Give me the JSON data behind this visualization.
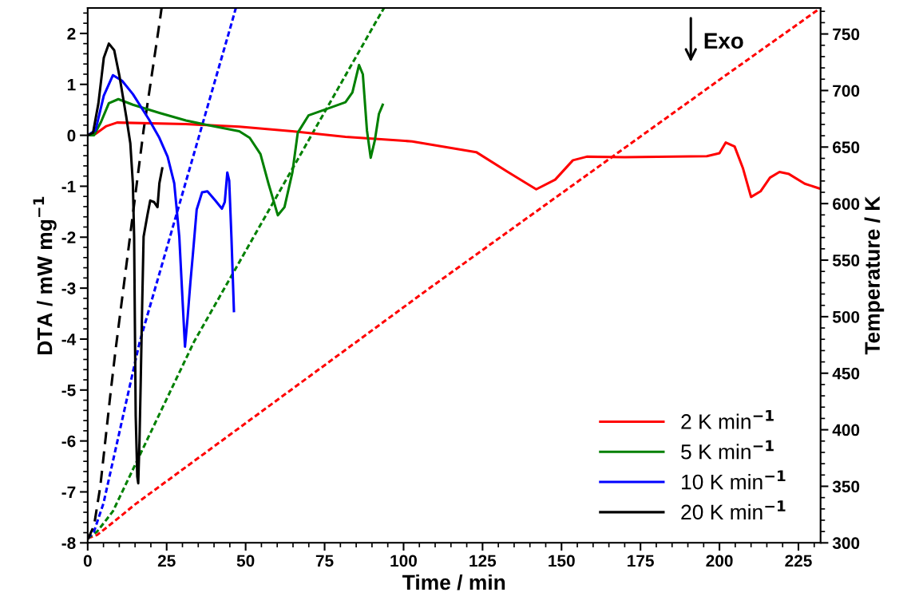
{
  "chart_data": {
    "type": "line",
    "xlabel": "Time / min",
    "ylabel": "DTA / mW mg$^{−1}$",
    "y2label": "Temperature / K",
    "xlim": [
      0,
      232
    ],
    "xticks": [
      0,
      25,
      50,
      75,
      100,
      125,
      150,
      175,
      200,
      225
    ],
    "ylim": [
      -8,
      2.5
    ],
    "yticks": [
      -8,
      -7,
      -6,
      -5,
      -4,
      -3,
      -2,
      -1,
      0,
      1,
      2
    ],
    "y2lim": [
      300,
      773
    ],
    "y2ticks": [
      300,
      350,
      400,
      450,
      500,
      550,
      600,
      650,
      700,
      750
    ],
    "grid": false,
    "legend": "bottom right",
    "line_style": "solid",
    "marker": "none",
    "annotations": [
      "Exo"
    ],
    "series": [
      {
        "name": "2 K min$^{−1}$",
        "color": "#ff0000",
        "x": [
          0,
          2.5,
          5.9,
          9.3,
          31,
          48,
          64.8,
          81.6,
          98.5,
          102.7,
          123,
          133,
          142,
          148,
          153.6,
          158,
          170,
          196,
          200,
          202,
          204.8,
          207.4,
          210,
          213,
          216,
          219,
          222,
          227,
          231.5
        ],
        "values": [
          0,
          0.03,
          0.18,
          0.25,
          0.22,
          0.17,
          0.08,
          -0.03,
          -0.1,
          -0.12,
          -0.33,
          -0.72,
          -1.06,
          -0.87,
          -0.49,
          -0.42,
          -0.43,
          -0.41,
          -0.35,
          -0.14,
          -0.22,
          -0.64,
          -1.21,
          -1.1,
          -0.83,
          -0.72,
          -0.76,
          -0.95,
          -1.04
        ]
      },
      {
        "name": "5 K min$^{−1}$",
        "color": "#008000",
        "x": [
          0,
          2,
          4.2,
          6.7,
          9.7,
          14.3,
          22.7,
          31.1,
          39.6,
          48,
          51.3,
          54.7,
          57.2,
          60.2,
          62.3,
          64.8,
          66.5,
          69.9,
          75.8,
          81.6,
          83.8,
          85.9,
          87.1,
          88.4,
          89.6,
          90.9,
          92.2,
          93.4
        ],
        "values": [
          0,
          0,
          0.26,
          0.63,
          0.71,
          0.6,
          0.44,
          0.29,
          0.18,
          0.08,
          -0.05,
          -0.37,
          -0.94,
          -1.57,
          -1.41,
          -0.73,
          0.05,
          0.39,
          0.52,
          0.65,
          0.84,
          1.38,
          1.2,
          0.1,
          -0.44,
          -0.1,
          0.42,
          0.6
        ]
      },
      {
        "name": "10 K min$^{−1}$",
        "color": "#0000ff",
        "x": [
          0,
          2.5,
          5.1,
          8,
          10.9,
          14.3,
          19.4,
          22.7,
          25.3,
          27.4,
          29,
          30,
          30.8,
          31.6,
          32.5,
          33.3,
          34.5,
          36.2,
          37.9,
          40.4,
          42.5,
          43.4,
          44.2,
          44.8,
          45.5,
          46.3
        ],
        "values": [
          0,
          0.1,
          0.78,
          1.18,
          1.07,
          0.81,
          0.31,
          -0.05,
          -0.42,
          -0.94,
          -1.99,
          -3.2,
          -4.15,
          -3.6,
          -2.9,
          -2.34,
          -1.46,
          -1.12,
          -1.1,
          -1.28,
          -1.44,
          -1.31,
          -0.73,
          -0.89,
          -1.99,
          -3.45
        ]
      },
      {
        "name": "20 K min$^{−1}$",
        "color": "#000000",
        "x": [
          0,
          1.7,
          3.4,
          5.1,
          6.7,
          8.4,
          10.1,
          12.2,
          13.5,
          14.3,
          14.7,
          15.2,
          15.7,
          16.0,
          16.4,
          16.8,
          17.2,
          17.7,
          18.9,
          19.8,
          21,
          22.1,
          22.7,
          23.6
        ],
        "values": [
          0,
          0.05,
          0.63,
          1.52,
          1.8,
          1.67,
          1.15,
          0.37,
          -0.16,
          -0.94,
          -1.99,
          -5.5,
          -6.7,
          -6.83,
          -6.0,
          -4.8,
          -3.49,
          -1.99,
          -1.57,
          -1.28,
          -1.31,
          -1.41,
          -0.94,
          -0.65
        ]
      },
      {
        "axis": "y2",
        "color": "#ff0000",
        "line_style": "dashed",
        "x": [
          0,
          3,
          8,
          15,
          108.6,
          200,
          232
        ],
        "values": [
          304,
          307,
          318,
          334,
          526,
          709.5,
          773
        ]
      },
      {
        "axis": "y2",
        "color": "#008000",
        "line_style": "dashed",
        "x": [
          0,
          3,
          8,
          33.7,
          90.9,
          93.8
        ],
        "values": [
          304,
          310,
          328,
          478,
          759,
          773
        ]
      },
      {
        "axis": "y2",
        "color": "#0000ff",
        "line_style": "dashed",
        "x": [
          0,
          2,
          5,
          16.4,
          45.5,
          46.9
        ],
        "values": [
          304,
          310,
          335,
          477,
          759,
          773
        ]
      },
      {
        "axis": "y2",
        "color": "#000000",
        "line_style": "dashed",
        "x": [
          0,
          2,
          4,
          7.3,
          8.8,
          17.7,
          22.7,
          23.4
        ],
        "values": [
          303,
          315,
          350,
          434,
          470,
          665,
          759,
          773
        ]
      }
    ]
  }
}
